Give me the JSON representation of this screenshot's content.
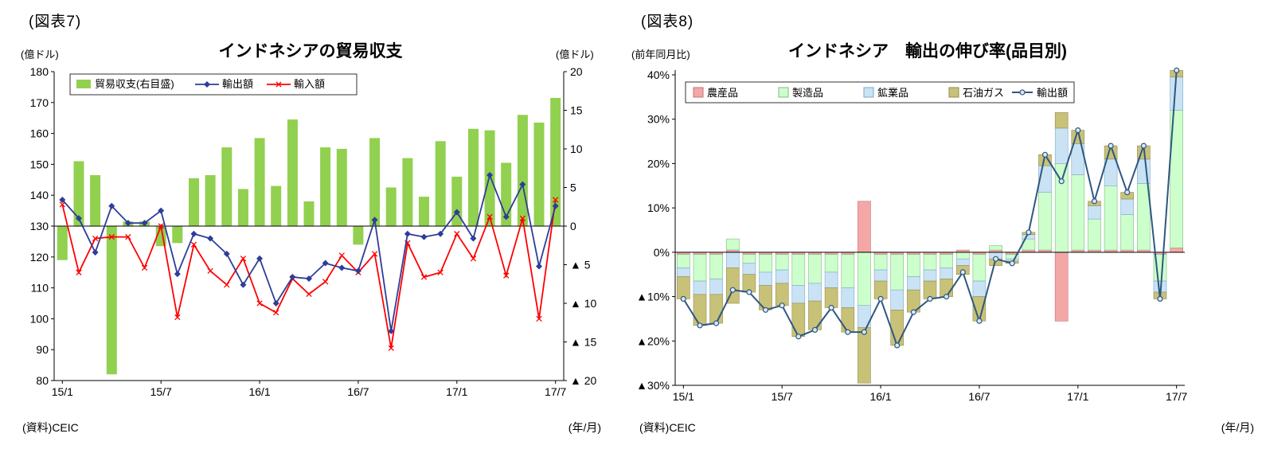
{
  "chart_data": [
    {
      "type": "bar+line",
      "fig_label": "(図表7)",
      "title": "インドネシアの貿易収支",
      "left_axis_unit": "(億ドル)",
      "right_axis_unit": "(億ドル)",
      "source": "(資料)CEIC",
      "x_axis_note": "(年/月)",
      "categories": [
        "15/1",
        "15/2",
        "15/3",
        "15/4",
        "15/5",
        "15/6",
        "15/7",
        "15/8",
        "15/9",
        "15/10",
        "15/11",
        "15/12",
        "16/1",
        "16/2",
        "16/3",
        "16/4",
        "16/5",
        "16/6",
        "16/7",
        "16/8",
        "16/9",
        "16/10",
        "16/11",
        "16/12",
        "17/1",
        "17/2",
        "17/3",
        "17/4",
        "17/5",
        "17/6",
        "17/7"
      ],
      "x_tick_indices": [
        0,
        6,
        12,
        18,
        24,
        30
      ],
      "x_tick_labels": [
        "15/1",
        "15/7",
        "16/1",
        "16/7",
        "17/1",
        "17/7"
      ],
      "left_axis": {
        "min": 80,
        "max": 180,
        "tick_values": [
          180,
          170,
          160,
          150,
          140,
          130,
          120,
          110,
          100,
          90,
          80
        ],
        "tick_labels": [
          "180",
          "170",
          "160",
          "150",
          "140",
          "130",
          "120",
          "110",
          "100",
          "90",
          "80"
        ]
      },
      "right_axis": {
        "min": -20,
        "max": 20,
        "tick_values": [
          20,
          15,
          10,
          5,
          0,
          -5,
          -10,
          -15,
          -20
        ],
        "tick_labels": [
          "20",
          "15",
          "10",
          "5",
          "0",
          "▲ 5",
          "▲ 10",
          "▲ 15",
          "▲ 20"
        ]
      },
      "legend_position": "top-left-inside",
      "series": [
        {
          "name": "貿易収支(右目盛)",
          "type": "bar",
          "axis": "right",
          "color": "#92D050",
          "values": [
            -4.4,
            8.4,
            6.6,
            -19.2,
            0.6,
            0.6,
            -2.6,
            -2.2,
            6.2,
            6.6,
            10.2,
            4.8,
            11.4,
            5.2,
            13.8,
            3.2,
            10.2,
            10.0,
            -2.4,
            11.4,
            5.0,
            8.8,
            3.8,
            11.0,
            6.4,
            12.6,
            12.4,
            8.2,
            14.4,
            13.4,
            16.6
          ]
        },
        {
          "name": "輸出額",
          "type": "line",
          "axis": "left",
          "marker": "diamond",
          "color": "#2E3D98",
          "values": [
            138.5,
            132.5,
            121.5,
            136.5,
            131,
            131,
            135,
            114.5,
            127.5,
            126,
            121,
            111,
            119.5,
            105,
            113.5,
            113,
            118,
            116.5,
            115.5,
            132,
            96,
            127.5,
            126.5,
            127.5,
            134.5,
            126,
            146.5,
            133,
            143.5,
            117,
            136.5
          ]
        },
        {
          "name": "輸入額",
          "type": "line",
          "axis": "left",
          "marker": "x",
          "color": "#FF0000",
          "values": [
            137,
            115,
            126,
            126.5,
            126.5,
            116.5,
            130,
            100.5,
            124,
            115.5,
            111,
            119.5,
            105,
            102,
            113,
            108,
            112,
            120.5,
            115,
            121,
            90.5,
            124.5,
            113.5,
            115,
            127.5,
            119.5,
            133,
            114,
            132.5,
            100,
            138.5
          ]
        }
      ]
    },
    {
      "type": "stacked-bar+line",
      "fig_label": "(図表8)",
      "title": "インドネシア　輸出の伸び率(品目別)",
      "y_axis_unit": "(前年同月比)",
      "source": "(資料)CEIC",
      "x_axis_note": "(年/月)",
      "categories": [
        "15/1",
        "15/2",
        "15/3",
        "15/4",
        "15/5",
        "15/6",
        "15/7",
        "15/8",
        "15/9",
        "15/10",
        "15/11",
        "15/12",
        "16/1",
        "16/2",
        "16/3",
        "16/4",
        "16/5",
        "16/6",
        "16/7",
        "16/8",
        "16/9",
        "16/10",
        "16/11",
        "16/12",
        "17/1",
        "17/2",
        "17/3",
        "17/4",
        "17/5",
        "17/6",
        "17/7"
      ],
      "x_tick_indices": [
        0,
        6,
        12,
        18,
        24,
        30
      ],
      "x_tick_labels": [
        "15/1",
        "15/7",
        "16/1",
        "16/7",
        "17/1",
        "17/7"
      ],
      "y_axis": {
        "min": -30,
        "max": 40,
        "tick_values": [
          40,
          30,
          20,
          10,
          0,
          -10,
          -20,
          -30
        ],
        "tick_labels": [
          "40%",
          "30%",
          "20%",
          "10%",
          "0%",
          "▲10%",
          "▲20%",
          "▲30%"
        ]
      },
      "legend_position": "top-inside",
      "series": [
        {
          "name": "農産品",
          "type": "bar-stack",
          "color": "#F4A7A7",
          "border": "#C87070",
          "values": [
            -0.5,
            -0.5,
            -0.5,
            0.5,
            -0.5,
            -0.5,
            -0.5,
            -0.5,
            -0.5,
            -0.5,
            -0.5,
            11.5,
            -0.5,
            -0.5,
            -0.5,
            -0.5,
            -0.5,
            0.5,
            -0.5,
            0.5,
            -0.5,
            0.5,
            0.5,
            -15.5,
            0.5,
            0.5,
            0.5,
            0.5,
            0.5,
            -0.5,
            1.0
          ]
        },
        {
          "name": "製造品",
          "type": "bar-stack",
          "color": "#CCFFCC",
          "border": "#84B884",
          "values": [
            -3,
            -6,
            -5.5,
            2.5,
            -2,
            -4,
            -3.5,
            -7,
            -6.5,
            -4,
            -7.5,
            -12,
            -3.5,
            -8,
            -5,
            -3.5,
            -3,
            -1.5,
            -6,
            1,
            -1,
            2.5,
            13,
            20,
            17,
            7,
            14.5,
            8,
            15,
            -6,
            31
          ]
        },
        {
          "name": "鉱業品",
          "type": "bar-stack",
          "color": "#C9E3F5",
          "border": "#7FA8C9",
          "values": [
            -2,
            -3,
            -3.5,
            -3.5,
            -2.5,
            -3,
            -3,
            -4,
            -4,
            -3.5,
            -4.5,
            -5,
            -2.5,
            -4.5,
            -3,
            -2.5,
            -2.5,
            -1.5,
            -3.5,
            -1.5,
            -0.5,
            1,
            6,
            8,
            7,
            3,
            6,
            3.5,
            5.5,
            -2.5,
            7.5
          ]
        },
        {
          "name": "石油ガス",
          "type": "bar-stack",
          "color": "#C8C178",
          "border": "#948D4E",
          "values": [
            -5,
            -7,
            -6.5,
            -8,
            -4,
            -5.5,
            -5,
            -7.5,
            -6.5,
            -4.5,
            -5.5,
            -12.5,
            -4,
            -8,
            -5,
            -4,
            -4,
            -2,
            -5.5,
            -1.5,
            -0.5,
            0.5,
            2.5,
            3.5,
            3,
            1,
            3,
            1.5,
            3,
            -1.5,
            1.5
          ]
        },
        {
          "name": "輸出額",
          "type": "line",
          "marker": "circle",
          "color": "#2F5780",
          "values": [
            -10.5,
            -16.5,
            -16,
            -8.5,
            -9,
            -13,
            -12,
            -19,
            -17.5,
            -12.5,
            -18,
            -18,
            -10.5,
            -21,
            -13.5,
            -10.5,
            -10,
            -4.5,
            -15.5,
            -1.5,
            -2.5,
            4.5,
            22,
            16,
            27.5,
            11.5,
            24,
            13.5,
            24,
            -10.5,
            41
          ]
        }
      ]
    }
  ]
}
